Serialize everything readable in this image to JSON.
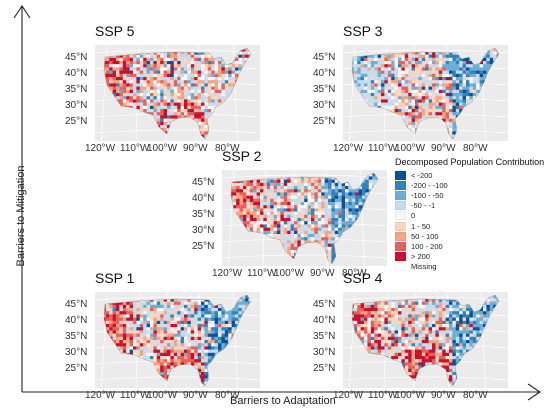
{
  "x_axis_label": "Barriers to Adaptation",
  "y_axis_label": "Barriers to Mitigation",
  "lat_labels": [
    "45°N",
    "40°N",
    "35°N",
    "30°N",
    "25°N"
  ],
  "lon_labels": [
    "120°W",
    "110°W",
    "100°W",
    "90°W",
    "80°W"
  ],
  "panels": [
    {
      "id": "ssp5",
      "title": "SSP 5",
      "east": "mixed",
      "west": "red",
      "south": "red"
    },
    {
      "id": "ssp3",
      "title": "SSP 3",
      "east": "blue",
      "west": "light-blue",
      "south": "mixed"
    },
    {
      "id": "ssp2",
      "title": "SSP 2",
      "east": "blue",
      "west": "red",
      "south": "mixed"
    },
    {
      "id": "ssp1",
      "title": "SSP 1",
      "east": "blue",
      "west": "red",
      "south": "red"
    },
    {
      "id": "ssp4",
      "title": "SSP 4",
      "east": "blue",
      "west": "red",
      "south": "red"
    }
  ],
  "legend": {
    "title": "Decomposed Population Contribution",
    "items": [
      {
        "label": "< -200",
        "color": "#08519c"
      },
      {
        "label": "-200 - -100",
        "color": "#3182bd"
      },
      {
        "label": "-100 - -50",
        "color": "#6baed6"
      },
      {
        "label": "-50 - -1",
        "color": "#c6dbef"
      },
      {
        "label": "0",
        "color": "#f7f7f7"
      },
      {
        "label": "1 - 50",
        "color": "#fcd5c0"
      },
      {
        "label": "50 - 100",
        "color": "#f4a582"
      },
      {
        "label": "100 - 200",
        "color": "#e8605a"
      },
      {
        "label": "> 200",
        "color": "#c8102e"
      },
      {
        "label": "Missing",
        "color": "#ffffff"
      }
    ]
  }
}
